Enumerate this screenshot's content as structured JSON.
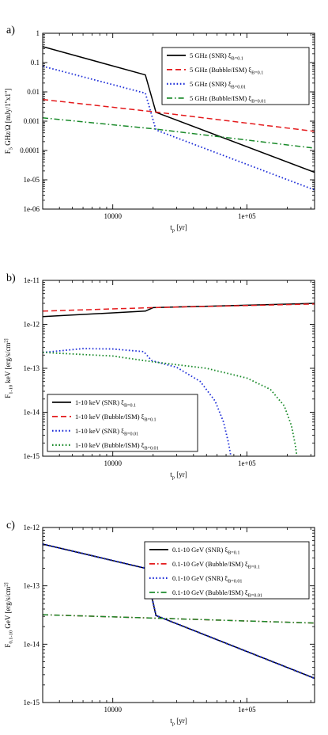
{
  "chart_data": [
    {
      "type": "line",
      "panel_label": "a)",
      "xlabel": "t_p [yr]",
      "ylabel": "F_5 GHz/Ω [mJy/1''x1'']",
      "xscale": "log",
      "yscale": "log",
      "xlim": [
        3000,
        320000
      ],
      "ylim": [
        1e-06,
        1
      ],
      "x_ticks": [
        10000,
        100000
      ],
      "x_tick_labels": [
        "10000",
        "1e+05"
      ],
      "y_ticks": [
        1e-06,
        1e-05,
        0.0001,
        0.001,
        0.01,
        0.1,
        1
      ],
      "y_tick_labels": [
        "1e-06",
        "1e-05",
        "0.0001",
        "0.001",
        "0.01",
        "0.1",
        "1"
      ],
      "legend_position": "top-right",
      "series": [
        {
          "name": "5 GHz (SNR) ξ_B=0.1",
          "color": "#000000",
          "dash": "solid",
          "points": [
            [
              3000,
              0.35
            ],
            [
              17500,
              0.038
            ],
            [
              21000,
              0.002
            ],
            [
              320000,
              1.8e-05
            ]
          ]
        },
        {
          "name": "5 GHz (Bubble/ISM) ξ_B=0.1",
          "color": "#e41a1c",
          "dash": "dashed",
          "points": [
            [
              3000,
              0.0055
            ],
            [
              20000,
              0.0021
            ],
            [
              320000,
              0.00045
            ]
          ]
        },
        {
          "name": "5 GHz (SNR) ξ_B=0.01",
          "color": "#1f2fd8",
          "dash": "dotted",
          "points": [
            [
              3000,
              0.075
            ],
            [
              17500,
              0.009
            ],
            [
              21000,
              0.0005
            ],
            [
              320000,
              4.5e-06
            ]
          ]
        },
        {
          "name": "5 GHz (Bubble/ISM) ξ_B=0.01",
          "color": "#1a8a2a",
          "dash": "dashdot",
          "points": [
            [
              3000,
              0.0013
            ],
            [
              20000,
              0.00055
            ],
            [
              320000,
              0.00012
            ]
          ]
        }
      ]
    },
    {
      "type": "line",
      "panel_label": "b)",
      "xlabel": "t_p [yr]",
      "ylabel": "F_1-10 keV [erg/s/cm^2]",
      "xscale": "log",
      "yscale": "log",
      "xlim": [
        3000,
        320000
      ],
      "ylim": [
        1e-15,
        1e-11
      ],
      "x_ticks": [
        10000,
        100000
      ],
      "x_tick_labels": [
        "10000",
        "1e+05"
      ],
      "y_ticks": [
        1e-15,
        1e-14,
        1e-13,
        1e-12,
        1e-11
      ],
      "y_tick_labels": [
        "1e-15",
        "1e-14",
        "1e-13",
        "1e-12",
        "1e-11"
      ],
      "legend_position": "bottom-left",
      "series": [
        {
          "name": "1-10 keV (SNR) ξ_B=0.1",
          "color": "#000000",
          "dash": "solid",
          "points": [
            [
              3000,
              1.5e-12
            ],
            [
              17500,
              2e-12
            ],
            [
              20000,
              2.4e-12
            ],
            [
              320000,
              3e-12
            ]
          ]
        },
        {
          "name": "1-10 keV (Bubble/ISM) ξ_B=0.1",
          "color": "#e41a1c",
          "dash": "dashed",
          "points": [
            [
              3000,
              2e-12
            ],
            [
              20000,
              2.4e-12
            ],
            [
              320000,
              2.9e-12
            ]
          ]
        },
        {
          "name": "1-10 keV (SNR) ξ_B=0.01",
          "color": "#1f2fd8",
          "dash": "dotted",
          "points": [
            [
              3000,
              2.3e-13
            ],
            [
              6000,
              2.8e-13
            ],
            [
              10000,
              2.75e-13
            ],
            [
              17000,
              2.4e-13
            ],
            [
              19500,
              1.5e-13
            ],
            [
              30000,
              1.05e-13
            ],
            [
              45000,
              5e-14
            ],
            [
              58000,
              1.8e-14
            ],
            [
              67000,
              6e-15
            ],
            [
              73000,
              2e-15
            ],
            [
              76000,
              1e-15
            ]
          ]
        },
        {
          "name": "1-10 keV (Bubble/ISM) ξ_B=0.01",
          "color": "#1a8a2a",
          "dash": "dotted",
          "points": [
            [
              3000,
              2.3e-13
            ],
            [
              10000,
              1.9e-13
            ],
            [
              20000,
              1.4e-13
            ],
            [
              50000,
              1e-13
            ],
            [
              100000,
              6e-14
            ],
            [
              150000,
              3.3e-14
            ],
            [
              190000,
              1.4e-14
            ],
            [
              215000,
              5e-15
            ],
            [
              230000,
              1.8e-15
            ],
            [
              236000,
              1e-15
            ]
          ]
        }
      ]
    },
    {
      "type": "line",
      "panel_label": "c)",
      "xlabel": "t_p [yr]",
      "ylabel": "F_0.1-10 GeV [erg/s/cm^2]",
      "xscale": "log",
      "yscale": "log",
      "xlim": [
        3000,
        320000
      ],
      "ylim": [
        1e-15,
        1e-12
      ],
      "x_ticks": [
        10000,
        100000
      ],
      "x_tick_labels": [
        "10000",
        "1e+05"
      ],
      "y_ticks": [
        1e-15,
        1e-14,
        1e-13,
        1e-12
      ],
      "y_tick_labels": [
        "1e-15",
        "1e-14",
        "1e-13",
        "1e-12"
      ],
      "legend_position": "top-right",
      "series": [
        {
          "name": "0.1-10 GeV (SNR) ξ_B=0.1",
          "color": "#000000",
          "dash": "solid",
          "points": [
            [
              3000,
              5.2e-13
            ],
            [
              17500,
              2e-13
            ],
            [
              21000,
              3.1e-14
            ],
            [
              320000,
              2.6e-15
            ]
          ]
        },
        {
          "name": "0.1-10 GeV (Bubble/ISM) ξ_B=0.1",
          "color": "#e41a1c",
          "dash": "dashdot",
          "points": [
            [
              3000,
              3.2e-14
            ],
            [
              20000,
              2.8e-14
            ],
            [
              320000,
              2.3e-14
            ]
          ]
        },
        {
          "name": "0.1-10 GeV (SNR) ξ_B=0.01",
          "color": "#1f2fd8",
          "dash": "dotted",
          "points": [
            [
              3000,
              5.2e-13
            ],
            [
              17500,
              2e-13
            ],
            [
              21000,
              3.1e-14
            ],
            [
              320000,
              2.6e-15
            ]
          ]
        },
        {
          "name": "0.1-10 GeV (Bubble/ISM) ξ_B=0.01",
          "color": "#1a8a2a",
          "dash": "dashdot",
          "points": [
            [
              3000,
              3.2e-14
            ],
            [
              20000,
              2.8e-14
            ],
            [
              320000,
              2.3e-14
            ]
          ]
        }
      ]
    }
  ]
}
